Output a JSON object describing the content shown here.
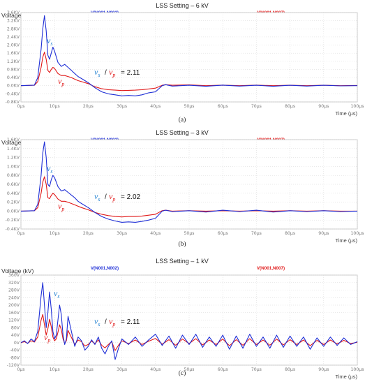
{
  "chart_data": [
    {
      "type": "line",
      "title": "LSS Setting – 6 kV",
      "ylabel": "Voltage (kV)",
      "xlabel": "Time (µs)",
      "caption": "(a)",
      "legend_left": "V(N001,N002)",
      "legend_right": "V(N001,N007)",
      "label_s": "v_s",
      "label_p": "v_p",
      "ratio_text": "= 2.11",
      "xlim": [
        0,
        100
      ],
      "ylim": [
        -0.8,
        3.6
      ],
      "x_ticks": [
        "0µs",
        "10µs",
        "20µs",
        "30µs",
        "40µs",
        "50µs",
        "60µs",
        "70µs",
        "80µs",
        "90µs",
        "100µs"
      ],
      "y_ticks": [
        {
          "v": 3.6,
          "t": "3.6KV"
        },
        {
          "v": 3.2,
          "t": "3.2KV"
        },
        {
          "v": 2.8,
          "t": "2.8KV"
        },
        {
          "v": 2.4,
          "t": "2.4KV"
        },
        {
          "v": 2.0,
          "t": "2.0KV"
        },
        {
          "v": 1.6,
          "t": "1.6KV"
        },
        {
          "v": 1.2,
          "t": "1.2KV"
        },
        {
          "v": 0.8,
          "t": "0.8KV"
        },
        {
          "v": 0.4,
          "t": "0.4KV"
        },
        {
          "v": 0.0,
          "t": "0.0KV"
        },
        {
          "v": -0.4,
          "t": "-0.4KV"
        },
        {
          "v": -0.8,
          "t": "-0.8KV"
        }
      ],
      "series": [
        {
          "name": "V(N001,N002)",
          "color": "#1f2fd6",
          "x": [
            0,
            4,
            5,
            6,
            6.5,
            7,
            7.5,
            8,
            8.5,
            9,
            9.5,
            10,
            11,
            12,
            13,
            14,
            15,
            16,
            17,
            18,
            20,
            22,
            24,
            26,
            28,
            30,
            32,
            34,
            36,
            38,
            40,
            41,
            42,
            43,
            45,
            50,
            55,
            60,
            65,
            70,
            75,
            80,
            85,
            90,
            95,
            100
          ],
          "y": [
            0,
            0.03,
            0.4,
            1.8,
            2.8,
            3.45,
            2.7,
            1.5,
            1.3,
            1.6,
            1.9,
            1.7,
            1.15,
            0.95,
            1.05,
            0.9,
            0.75,
            0.6,
            0.45,
            0.35,
            0.15,
            -0.1,
            -0.3,
            -0.4,
            -0.45,
            -0.5,
            -0.48,
            -0.5,
            -0.45,
            -0.35,
            -0.3,
            -0.15,
            0.0,
            0.05,
            -0.02,
            0.02,
            -0.03,
            0.03,
            -0.02,
            0.02,
            -0.03,
            0.02,
            -0.02,
            0.02,
            -0.01,
            0.0
          ]
        },
        {
          "name": "V(N001,N007)",
          "color": "#e01818",
          "x": [
            0,
            4,
            5,
            6,
            6.5,
            7,
            7.5,
            8,
            8.5,
            9,
            9.5,
            10,
            11,
            12,
            13,
            14,
            15,
            16,
            17,
            18,
            20,
            22,
            24,
            26,
            28,
            30,
            32,
            34,
            36,
            38,
            40,
            41,
            42,
            43,
            45,
            50,
            55,
            60,
            65,
            70,
            75,
            80,
            85,
            90,
            95,
            100
          ],
          "y": [
            0,
            0.02,
            0.2,
            0.9,
            1.4,
            1.65,
            1.3,
            0.75,
            0.65,
            0.8,
            0.9,
            0.85,
            0.6,
            0.5,
            0.5,
            0.45,
            0.4,
            0.32,
            0.25,
            0.2,
            0.1,
            -0.05,
            -0.15,
            -0.2,
            -0.22,
            -0.24,
            -0.23,
            -0.22,
            -0.2,
            -0.16,
            -0.12,
            -0.05,
            0.02,
            0.05,
            0.02,
            0.04,
            0.0,
            0.03,
            0.0,
            0.03,
            0.0,
            0.02,
            0.0,
            0.02,
            0.0,
            0.01
          ]
        }
      ]
    },
    {
      "type": "line",
      "title": "LSS Setting – 3 kV",
      "ylabel": "Voltage (kV)",
      "xlabel": "Time (µs)",
      "caption": "(b)",
      "legend_left": "V(N001,N002)",
      "legend_right": "V(N001,N007)",
      "label_s": "v_s",
      "label_p": "v_p",
      "ratio_text": "= 2.02",
      "xlim": [
        0,
        100
      ],
      "ylim": [
        -0.4,
        1.6
      ],
      "x_ticks": [
        "0µs",
        "10µs",
        "20µs",
        "30µs",
        "40µs",
        "50µs",
        "60µs",
        "70µs",
        "80µs",
        "90µs",
        "100µs"
      ],
      "y_ticks": [
        {
          "v": 1.6,
          "t": "1.6KV"
        },
        {
          "v": 1.4,
          "t": "1.4KV"
        },
        {
          "v": 1.2,
          "t": "1.2KV"
        },
        {
          "v": 1.0,
          "t": "1.0KV"
        },
        {
          "v": 0.8,
          "t": "0.8KV"
        },
        {
          "v": 0.6,
          "t": "0.6KV"
        },
        {
          "v": 0.4,
          "t": "0.4KV"
        },
        {
          "v": 0.2,
          "t": "0.2KV"
        },
        {
          "v": 0.0,
          "t": "0.0KV"
        },
        {
          "v": -0.2,
          "t": "-0.2KV"
        },
        {
          "v": -0.4,
          "t": "-0.4KV"
        }
      ],
      "series": [
        {
          "name": "V(N001,N002)",
          "color": "#1f2fd6",
          "x": [
            0,
            4,
            5,
            6,
            6.5,
            7,
            7.5,
            8,
            8.5,
            9,
            9.5,
            10,
            11,
            12,
            13,
            14,
            15,
            16,
            17,
            18,
            20,
            22,
            24,
            26,
            28,
            30,
            32,
            34,
            36,
            38,
            40,
            41,
            42,
            43,
            45,
            50,
            55,
            60,
            65,
            70,
            75,
            80,
            85,
            90,
            95,
            100
          ],
          "y": [
            0,
            0.01,
            0.15,
            0.8,
            1.3,
            1.55,
            1.2,
            0.6,
            0.55,
            0.7,
            0.8,
            0.75,
            0.55,
            0.45,
            0.48,
            0.42,
            0.36,
            0.3,
            0.22,
            0.17,
            0.08,
            -0.03,
            -0.12,
            -0.18,
            -0.22,
            -0.25,
            -0.24,
            -0.25,
            -0.23,
            -0.2,
            -0.16,
            -0.08,
            0.0,
            0.02,
            -0.01,
            0.01,
            -0.02,
            0.02,
            -0.01,
            0.02,
            -0.02,
            0.01,
            -0.01,
            0.01,
            -0.01,
            0.0
          ]
        },
        {
          "name": "V(N001,N007)",
          "color": "#e01818",
          "x": [
            0,
            4,
            5,
            6,
            6.5,
            7,
            7.5,
            8,
            8.5,
            9,
            9.5,
            10,
            11,
            12,
            13,
            14,
            15,
            16,
            17,
            18,
            20,
            22,
            24,
            26,
            28,
            30,
            32,
            34,
            36,
            38,
            40,
            41,
            42,
            43,
            45,
            50,
            55,
            60,
            65,
            70,
            75,
            80,
            85,
            90,
            95,
            100
          ],
          "y": [
            0,
            0.01,
            0.08,
            0.4,
            0.65,
            0.77,
            0.6,
            0.3,
            0.28,
            0.35,
            0.4,
            0.37,
            0.27,
            0.22,
            0.22,
            0.2,
            0.17,
            0.14,
            0.11,
            0.08,
            0.03,
            -0.03,
            -0.07,
            -0.1,
            -0.12,
            -0.13,
            -0.12,
            -0.12,
            -0.11,
            -0.09,
            -0.07,
            -0.03,
            0.01,
            0.02,
            0.0,
            0.01,
            0.0,
            0.01,
            0.0,
            0.01,
            0.0,
            0.01,
            0.0,
            0.01,
            0.0,
            0.0
          ]
        }
      ]
    },
    {
      "type": "line",
      "title": "LSS Setting – 1 kV",
      "ylabel": "Voltage (kV)",
      "xlabel": "Time (µs)",
      "caption": "(c)",
      "legend_left": "V(N001,N002)",
      "legend_right": "V(N001,N007)",
      "label_s": "v_s",
      "label_p": "v_p",
      "ratio_text": "= 2.11",
      "xlim": [
        0,
        100
      ],
      "ylim": [
        -120,
        360
      ],
      "x_ticks": [
        "0µs",
        "10µs",
        "20µs",
        "30µs",
        "40µs",
        "50µs",
        "60µs",
        "70µs",
        "80µs",
        "90µs",
        "100µs"
      ],
      "y_ticks": [
        {
          "v": 360,
          "t": "360V"
        },
        {
          "v": 320,
          "t": "320V"
        },
        {
          "v": 280,
          "t": "280V"
        },
        {
          "v": 240,
          "t": "240V"
        },
        {
          "v": 200,
          "t": "200V"
        },
        {
          "v": 160,
          "t": "160V"
        },
        {
          "v": 120,
          "t": "120V"
        },
        {
          "v": 80,
          "t": "80V"
        },
        {
          "v": 40,
          "t": "40V"
        },
        {
          "v": 0,
          "t": "0V"
        },
        {
          "v": -40,
          "t": "-40V"
        },
        {
          "v": -80,
          "t": "-80V"
        },
        {
          "v": -120,
          "t": "-120V"
        }
      ],
      "series": [
        {
          "name": "V(N001,N002)",
          "color": "#1f2fd6",
          "x": [
            0,
            1,
            2,
            3,
            4,
            5,
            6,
            6.5,
            7,
            7.5,
            8,
            8.5,
            9,
            9.5,
            10,
            10.5,
            11,
            11.5,
            12,
            12.5,
            13,
            13.5,
            14,
            15,
            16,
            17,
            18,
            19,
            20,
            21,
            22,
            23,
            24,
            25,
            26,
            27,
            28,
            29,
            30,
            32,
            34,
            36,
            38,
            40,
            42,
            44,
            46,
            48,
            50,
            52,
            54,
            56,
            58,
            60,
            62,
            64,
            66,
            68,
            70,
            72,
            74,
            76,
            78,
            80,
            82,
            84,
            86,
            88,
            90,
            92,
            94,
            96,
            98,
            100
          ],
          "y": [
            0,
            10,
            -5,
            20,
            5,
            60,
            250,
            320,
            200,
            80,
            160,
            270,
            180,
            60,
            20,
            40,
            120,
            200,
            150,
            40,
            -10,
            20,
            140,
            60,
            -20,
            30,
            10,
            -40,
            -20,
            15,
            -10,
            30,
            -30,
            -60,
            -20,
            10,
            -90,
            -30,
            20,
            -10,
            30,
            -20,
            15,
            45,
            -15,
            35,
            -30,
            40,
            -10,
            45,
            -25,
            30,
            -20,
            40,
            -35,
            35,
            -30,
            45,
            -20,
            30,
            -30,
            40,
            -25,
            35,
            -20,
            30,
            -35,
            25,
            -20,
            30,
            -15,
            25,
            -10,
            5
          ]
        },
        {
          "name": "V(N001,N007)",
          "color": "#e01818",
          "x": [
            0,
            1,
            2,
            3,
            4,
            5,
            6,
            6.5,
            7,
            7.5,
            8,
            8.5,
            9,
            9.5,
            10,
            10.5,
            11,
            11.5,
            12,
            12.5,
            13,
            13.5,
            14,
            15,
            16,
            17,
            18,
            19,
            20,
            21,
            22,
            23,
            24,
            25,
            26,
            27,
            28,
            29,
            30,
            32,
            34,
            36,
            38,
            40,
            42,
            44,
            46,
            48,
            50,
            52,
            54,
            56,
            58,
            60,
            62,
            64,
            66,
            68,
            70,
            72,
            74,
            76,
            78,
            80,
            82,
            84,
            86,
            88,
            90,
            92,
            94,
            96,
            98,
            100
          ],
          "y": [
            0,
            5,
            -3,
            10,
            3,
            30,
            120,
            150,
            95,
            40,
            75,
            125,
            85,
            30,
            10,
            20,
            55,
            95,
            70,
            20,
            -5,
            10,
            65,
            28,
            -10,
            14,
            5,
            -18,
            -10,
            8,
            -5,
            14,
            -14,
            -28,
            -10,
            5,
            -42,
            -14,
            10,
            -5,
            14,
            -10,
            8,
            22,
            -8,
            16,
            -14,
            19,
            -5,
            21,
            -12,
            14,
            -10,
            19,
            -16,
            16,
            -14,
            21,
            -10,
            14,
            -14,
            19,
            -12,
            16,
            -10,
            14,
            -16,
            12,
            -10,
            14,
            -7,
            12,
            -5,
            2
          ]
        }
      ]
    }
  ]
}
